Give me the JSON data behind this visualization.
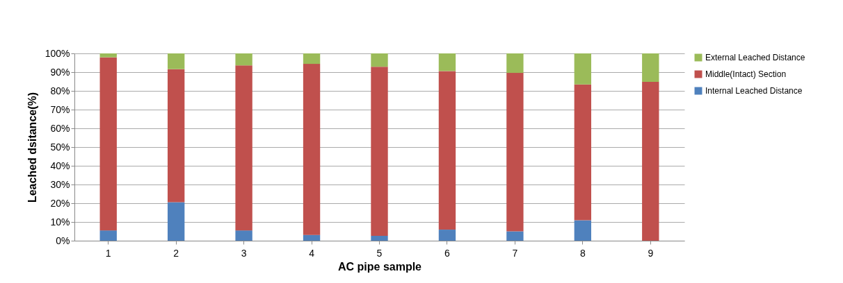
{
  "chart_data": {
    "type": "bar",
    "stacked": true,
    "xlabel": "AC pipe sample",
    "ylabel": "Leached dsitance(%)",
    "categories": [
      "1",
      "2",
      "3",
      "4",
      "5",
      "6",
      "7",
      "8",
      "9"
    ],
    "series": [
      {
        "name": "Internal Leached Distance",
        "color": "#4f81bd",
        "values": [
          5.5,
          20.6,
          5.5,
          3.1,
          2.6,
          5.9,
          5.0,
          10.9,
          0
        ]
      },
      {
        "name": "Middle(Intact) Section",
        "color": "#c0504d",
        "values": [
          92.4,
          71.0,
          88.1,
          91.3,
          90.3,
          84.7,
          84.6,
          72.5,
          84.8
        ]
      },
      {
        "name": "External Leached Distance",
        "color": "#9bbb59",
        "values": [
          2.1,
          8.4,
          6.4,
          5.6,
          7.1,
          9.4,
          10.4,
          16.6,
          15.2
        ]
      }
    ],
    "ylim": [
      0,
      100
    ],
    "yticks": [
      {
        "value": 0,
        "label": "0%"
      },
      {
        "value": 10,
        "label": "10%"
      },
      {
        "value": 20,
        "label": "20%"
      },
      {
        "value": 30,
        "label": "30%"
      },
      {
        "value": 40,
        "label": "40%"
      },
      {
        "value": 50,
        "label": "50%"
      },
      {
        "value": 60,
        "label": "60%"
      },
      {
        "value": 70,
        "label": "70%"
      },
      {
        "value": 80,
        "label": "80%"
      },
      {
        "value": 90,
        "label": "90%"
      },
      {
        "value": 100,
        "label": "100%"
      }
    ],
    "grid": "y",
    "legend": "right"
  }
}
